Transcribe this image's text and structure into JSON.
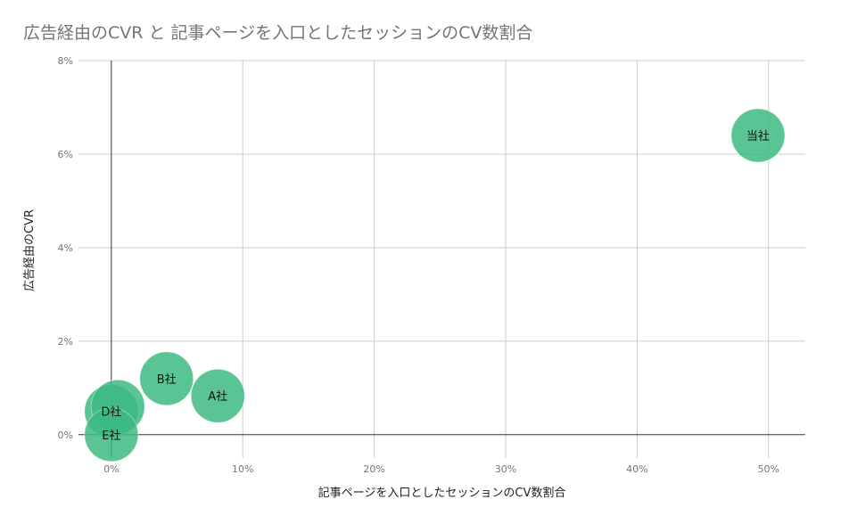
{
  "chart_data": {
    "type": "scatter",
    "title": "広告経由のCVR と 記事ページを入口としたセッションのCV数割合",
    "xlabel": "記事ページを入口としたセッションのCV数割合",
    "ylabel": "広告経由のCVR",
    "xlim": [
      -2.5,
      52.8
    ],
    "ylim": [
      -0.5,
      8
    ],
    "x_ticks": [
      0,
      10,
      20,
      30,
      40,
      50
    ],
    "y_ticks": [
      0,
      2,
      4,
      6,
      8
    ],
    "x_tick_labels": [
      "0%",
      "10%",
      "20%",
      "30%",
      "40%",
      "50%"
    ],
    "y_tick_labels": [
      "0%",
      "2%",
      "4%",
      "6%",
      "8%"
    ],
    "grid": true,
    "points": [
      {
        "label": "当社",
        "x": 49.2,
        "y": 6.4
      },
      {
        "label": "A社",
        "x": 8.1,
        "y": 0.83
      },
      {
        "label": "B社",
        "x": 4.2,
        "y": 1.2
      },
      {
        "label": "D社",
        "x": 0.0,
        "y": 0.5
      },
      {
        "label": "",
        "x": 0.5,
        "y": 0.6
      },
      {
        "label": "E社",
        "x": 0.0,
        "y": 0.0
      }
    ],
    "bubble_color": "#3dba83"
  }
}
